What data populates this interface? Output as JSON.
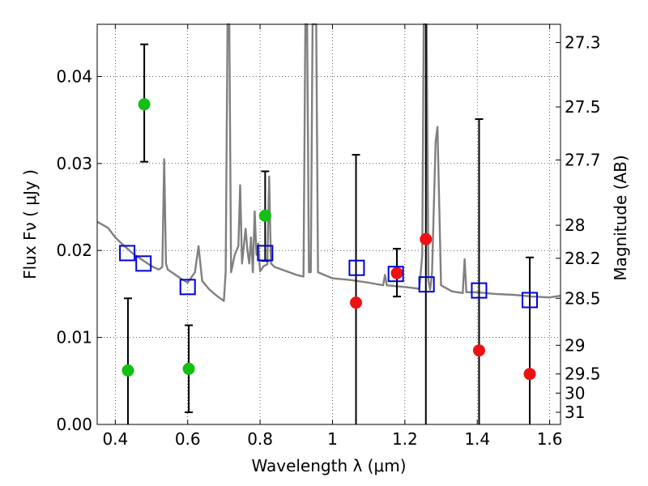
{
  "chart_data": {
    "type": "scatter",
    "xlabel": "Wavelength  λ (μm)",
    "ylabel": "Flux  Fν  ( μJy )",
    "y2label": "Magnitude (AB)",
    "xlim": [
      0.35,
      1.63
    ],
    "ylim": [
      0.0,
      0.046
    ],
    "grid": true,
    "x_ticks": [
      0.4,
      0.6,
      0.8,
      1.0,
      1.2,
      1.4,
      1.6
    ],
    "x_tick_labels": [
      "0.4",
      "0.6",
      "0.8",
      "1",
      "1.2",
      "1.4",
      "1.6"
    ],
    "y_ticks": [
      0.0,
      0.01,
      0.02,
      0.03,
      0.04
    ],
    "y_tick_labels": [
      "0.00",
      "0.01",
      "0.02",
      "0.03",
      "0.04"
    ],
    "y2_ticks": [
      {
        "label": "27.3",
        "flux": 0.0439
      },
      {
        "label": "27.5",
        "flux": 0.0365
      },
      {
        "label": "27.7",
        "flux": 0.0304
      },
      {
        "label": "28",
        "flux": 0.0229
      },
      {
        "label": "28.2",
        "flux": 0.0191
      },
      {
        "label": "28.5",
        "flux": 0.0145
      },
      {
        "label": "29",
        "flux": 0.0091
      },
      {
        "label": "29.5",
        "flux": 0.0058
      },
      {
        "label": "30",
        "flux": 0.0036
      },
      {
        "label": "31",
        "flux": 0.0014
      }
    ],
    "colors": {
      "green": "#11c011",
      "red": "#ee1111",
      "blue": "#0000dd",
      "spectrum": "#808080",
      "error": "#000000"
    },
    "series": [
      {
        "marker": "circle",
        "color": "green",
        "points": [
          {
            "x": 0.435,
            "y": 0.0062,
            "err_lo": 0.0,
            "err_hi": 0.0145
          },
          {
            "x": 0.48,
            "y": 0.0368,
            "err_lo": 0.0302,
            "err_hi": 0.0437
          },
          {
            "x": 0.603,
            "y": 0.0064,
            "err_lo": 0.0014,
            "err_hi": 0.0114
          },
          {
            "x": 0.814,
            "y": 0.024,
            "err_lo": 0.0188,
            "err_hi": 0.0291
          }
        ]
      },
      {
        "marker": "circle",
        "color": "red",
        "points": [
          {
            "x": 1.065,
            "y": 0.014,
            "err_lo": 0.0,
            "err_hi": 0.031
          },
          {
            "x": 1.178,
            "y": 0.0174,
            "err_lo": 0.0147,
            "err_hi": 0.0202
          },
          {
            "x": 1.258,
            "y": 0.0213,
            "err_lo": 0.0,
            "err_hi": 0.046
          },
          {
            "x": 1.405,
            "y": 0.0085,
            "err_lo": 0.0,
            "err_hi": 0.0351
          },
          {
            "x": 1.545,
            "y": 0.0058,
            "err_lo": 0.0,
            "err_hi": 0.0192
          }
        ]
      },
      {
        "marker": "open-square",
        "color": "blue",
        "points": [
          {
            "x": 0.433,
            "y": 0.0197
          },
          {
            "x": 0.478,
            "y": 0.0185
          },
          {
            "x": 0.6,
            "y": 0.0158
          },
          {
            "x": 0.814,
            "y": 0.0197
          },
          {
            "x": 1.067,
            "y": 0.018
          },
          {
            "x": 1.175,
            "y": 0.0173
          },
          {
            "x": 1.26,
            "y": 0.0161
          },
          {
            "x": 1.405,
            "y": 0.0154
          },
          {
            "x": 1.545,
            "y": 0.0143
          }
        ]
      }
    ],
    "spectrum": [
      [
        0.35,
        0.0233
      ],
      [
        0.38,
        0.0226
      ],
      [
        0.4,
        0.0215
      ],
      [
        0.42,
        0.0207
      ],
      [
        0.45,
        0.0196
      ],
      [
        0.5,
        0.0182
      ],
      [
        0.52,
        0.0178
      ],
      [
        0.53,
        0.0181
      ],
      [
        0.535,
        0.0305
      ],
      [
        0.54,
        0.0185
      ],
      [
        0.545,
        0.0178
      ],
      [
        0.58,
        0.0168
      ],
      [
        0.6,
        0.0163
      ],
      [
        0.62,
        0.0175
      ],
      [
        0.63,
        0.0205
      ],
      [
        0.64,
        0.0165
      ],
      [
        0.66,
        0.0155
      ],
      [
        0.68,
        0.0148
      ],
      [
        0.69,
        0.0145
      ],
      [
        0.7,
        0.0142
      ],
      [
        0.705,
        0.0175
      ],
      [
        0.71,
        0.046
      ],
      [
        0.715,
        0.046
      ],
      [
        0.72,
        0.0175
      ],
      [
        0.73,
        0.0195
      ],
      [
        0.74,
        0.0205
      ],
      [
        0.745,
        0.0275
      ],
      [
        0.75,
        0.0185
      ],
      [
        0.76,
        0.0225
      ],
      [
        0.765,
        0.02
      ],
      [
        0.77,
        0.0185
      ],
      [
        0.775,
        0.0215
      ],
      [
        0.78,
        0.0175
      ],
      [
        0.785,
        0.0245
      ],
      [
        0.79,
        0.0195
      ],
      [
        0.795,
        0.0208
      ],
      [
        0.8,
        0.0176
      ],
      [
        0.81,
        0.0182
      ],
      [
        0.82,
        0.0184
      ],
      [
        0.825,
        0.0285
      ],
      [
        0.83,
        0.0185
      ],
      [
        0.84,
        0.0181
      ],
      [
        0.86,
        0.0178
      ],
      [
        0.9,
        0.0172
      ],
      [
        0.92,
        0.017
      ],
      [
        0.925,
        0.046
      ],
      [
        0.93,
        0.046
      ],
      [
        0.935,
        0.0175
      ],
      [
        0.94,
        0.0175
      ],
      [
        0.945,
        0.046
      ],
      [
        0.95,
        0.046
      ],
      [
        0.955,
        0.046
      ],
      [
        0.96,
        0.0175
      ],
      [
        1.0,
        0.0168
      ],
      [
        1.05,
        0.0166
      ],
      [
        1.1,
        0.0163
      ],
      [
        1.14,
        0.016
      ],
      [
        1.145,
        0.0172
      ],
      [
        1.15,
        0.016
      ],
      [
        1.2,
        0.0158
      ],
      [
        1.24,
        0.0156
      ],
      [
        1.248,
        0.0195
      ],
      [
        1.252,
        0.046
      ],
      [
        1.26,
        0.046
      ],
      [
        1.265,
        0.0165
      ],
      [
        1.27,
        0.0155
      ],
      [
        1.275,
        0.0175
      ],
      [
        1.285,
        0.0325
      ],
      [
        1.29,
        0.0342
      ],
      [
        1.3,
        0.016
      ],
      [
        1.33,
        0.0153
      ],
      [
        1.36,
        0.0151
      ],
      [
        1.365,
        0.019
      ],
      [
        1.37,
        0.0152
      ],
      [
        1.4,
        0.0152
      ],
      [
        1.45,
        0.015
      ],
      [
        1.5,
        0.0149
      ],
      [
        1.55,
        0.0147
      ],
      [
        1.6,
        0.0146
      ],
      [
        1.63,
        0.0148
      ]
    ]
  }
}
